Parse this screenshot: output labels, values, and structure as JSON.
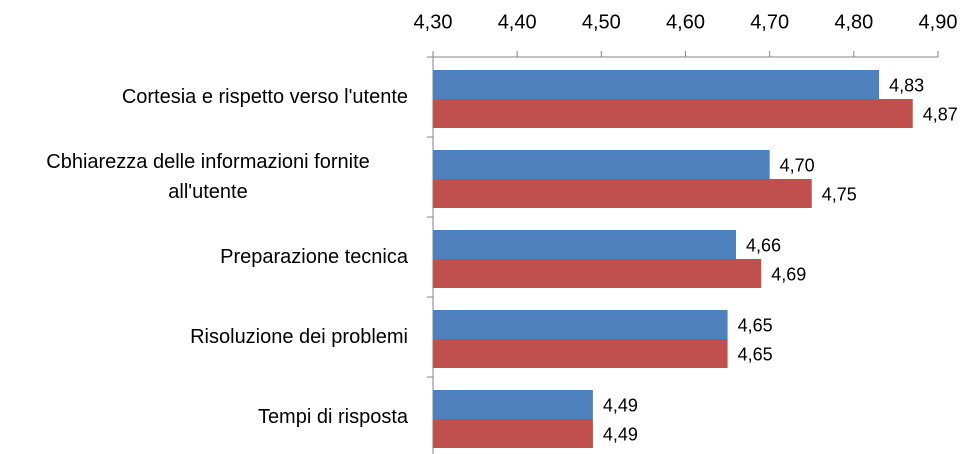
{
  "chart_data": {
    "type": "bar",
    "orientation": "horizontal",
    "categories": [
      "Cortesia e rispetto verso l'utente",
      "Cbhiarezza delle informazioni fornite all'utente",
      "Preparazione tecnica",
      "Risoluzione dei problemi",
      "Tempi di risposta"
    ],
    "series": [
      {
        "color": "#4f81bd",
        "values": [
          4.83,
          4.7,
          4.66,
          4.65,
          4.49
        ],
        "value_labels": [
          "4,83",
          "4,70",
          "4,66",
          "4,65",
          "4,49"
        ]
      },
      {
        "color": "#c0504d",
        "values": [
          4.87,
          4.75,
          4.69,
          4.65,
          4.49
        ],
        "value_labels": [
          "4,87",
          "4,75",
          "4,69",
          "4,65",
          "4,49"
        ]
      }
    ],
    "xlim": [
      4.3,
      4.9
    ],
    "xticks": [
      {
        "value": 4.3,
        "label": "4,30"
      },
      {
        "value": 4.4,
        "label": "4,40"
      },
      {
        "value": 4.5,
        "label": "4,50"
      },
      {
        "value": 4.6,
        "label": "4,60"
      },
      {
        "value": 4.7,
        "label": "4,70"
      },
      {
        "value": 4.8,
        "label": "4,80"
      },
      {
        "value": 4.9,
        "label": "4,90"
      }
    ],
    "grid": false
  }
}
